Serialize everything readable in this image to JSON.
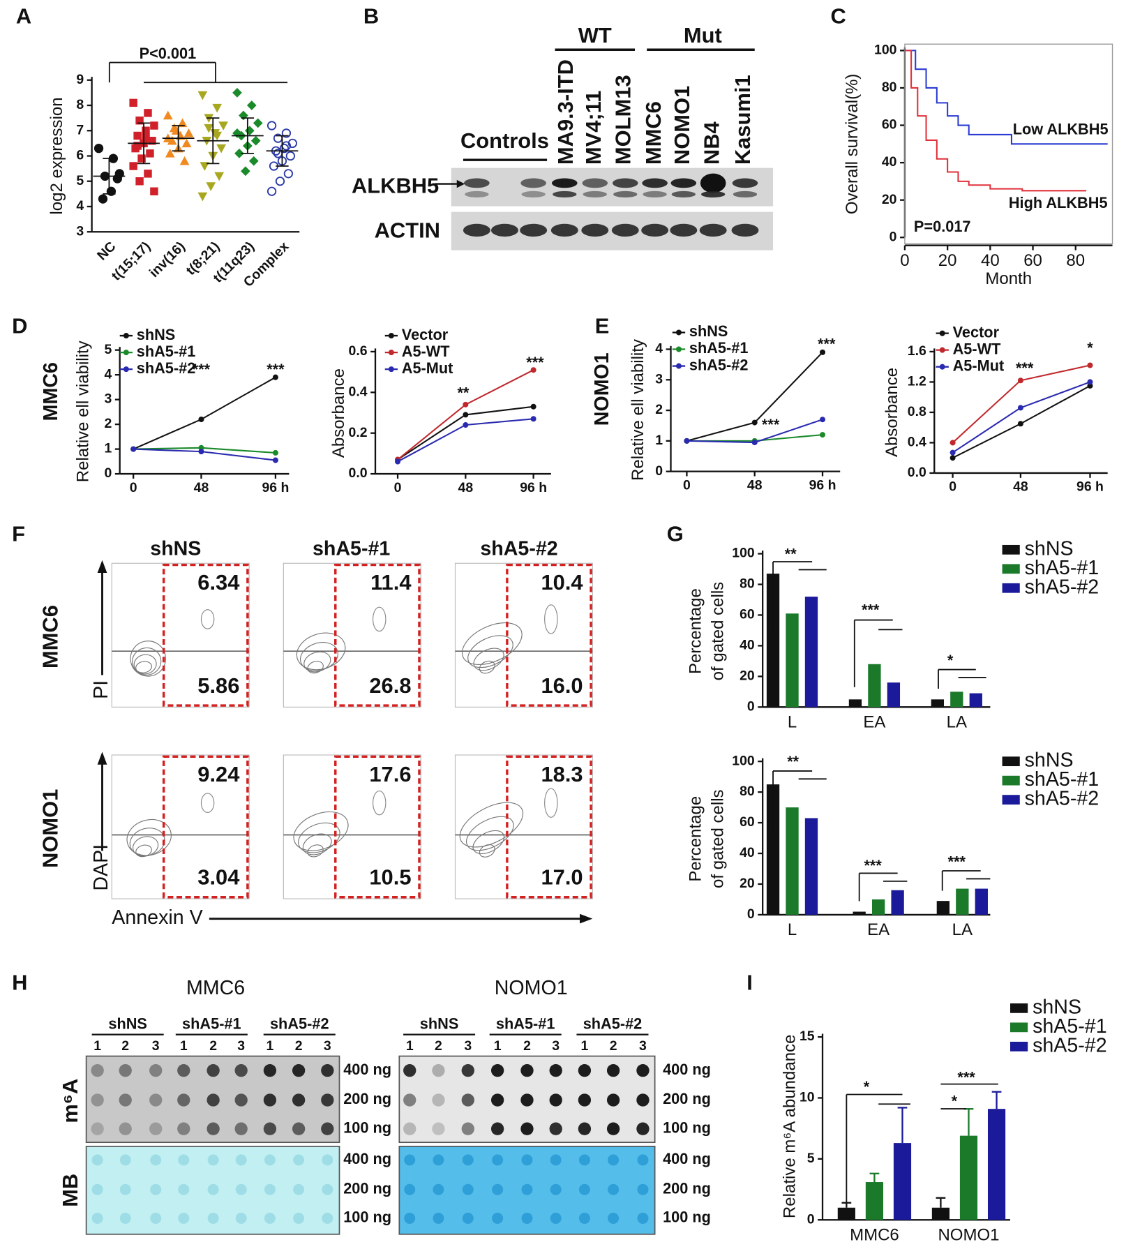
{
  "chart_data": [
    {
      "type": "scatter",
      "categories": [
        "NC",
        "t(15;17)",
        "inv(16)",
        "t(8;21)",
        "t(11q23)",
        "Complex"
      ],
      "points": [
        [
          6.3,
          5.9,
          5.2,
          5.3,
          4.6,
          4.3,
          5.1
        ],
        [
          8.1,
          7.7,
          7.4,
          7.2,
          7.0,
          6.8,
          6.6,
          6.5,
          6.3,
          6.1,
          5.9,
          5.6,
          5.3,
          5.0,
          4.6,
          6.7,
          6.4
        ],
        [
          7.6,
          7.3,
          7.1,
          6.9,
          6.8,
          6.6,
          6.5,
          6.3,
          6.1,
          5.8,
          7.0,
          6.7
        ],
        [
          8.4,
          7.9,
          7.5,
          7.2,
          6.9,
          6.6,
          6.3,
          6.0,
          5.6,
          5.2,
          4.8,
          4.4,
          6.8,
          7.1
        ],
        [
          8.5,
          8.0,
          7.6,
          7.3,
          7.0,
          6.8,
          6.6,
          6.4,
          6.1,
          5.8,
          5.4,
          6.9
        ],
        [
          7.2,
          6.9,
          6.7,
          6.5,
          6.3,
          6.2,
          6.0,
          5.8,
          5.6,
          5.3,
          5.0,
          4.6,
          6.4,
          6.1
        ]
      ],
      "mean": [
        5.2,
        6.5,
        6.7,
        6.6,
        6.8,
        6.2
      ],
      "sd": [
        0.7,
        0.8,
        0.5,
        0.9,
        0.7,
        0.6
      ],
      "colors": [
        "#111111",
        "#d0202a",
        "#f08a20",
        "#a8a820",
        "#1a8a2a",
        "#2a3aa8"
      ],
      "ylim": [
        3,
        9
      ],
      "yticks": [
        3,
        4,
        5,
        6,
        7,
        8,
        9
      ],
      "y_label": "log2 expression",
      "annotations": [
        "P<0.001"
      ]
    },
    {
      "type": "line",
      "step": true,
      "series": [
        {
          "name": "Low ALKBH5",
          "color": "#2a3bd1",
          "x": [
            0,
            5,
            10,
            15,
            20,
            25,
            30,
            35,
            50,
            95
          ],
          "values": [
            100,
            90,
            80,
            72,
            65,
            60,
            55,
            55,
            50,
            50
          ]
        },
        {
          "name": "High ALKBH5",
          "color": "#e0303a",
          "x": [
            0,
            3,
            6,
            10,
            15,
            20,
            25,
            30,
            40,
            55,
            85
          ],
          "values": [
            100,
            80,
            65,
            52,
            42,
            35,
            30,
            28,
            26,
            25,
            25
          ]
        }
      ],
      "xlim": [
        0,
        95
      ],
      "xticks": [
        0,
        20,
        40,
        60,
        80
      ],
      "ylim": [
        0,
        100
      ],
      "yticks": [
        0,
        20,
        40,
        60,
        80,
        100
      ],
      "x_label": "Month",
      "y_label": "Overall survival(%)",
      "annotations": [
        "P=0.017"
      ]
    },
    {
      "type": "line",
      "title": "MMC6",
      "categories": [
        "0",
        "48",
        "96 h"
      ],
      "series": [
        {
          "name": "shNS",
          "color": "#111111",
          "values": [
            1,
            2.2,
            3.9
          ]
        },
        {
          "name": "shA5-#1",
          "color": "#1a8a2a",
          "values": [
            1,
            1.05,
            0.85
          ]
        },
        {
          "name": "shA5-#2",
          "color": "#2a2ab0",
          "values": [
            1,
            0.9,
            0.55
          ]
        }
      ],
      "ylim": [
        0,
        5
      ],
      "yticks": [
        0,
        1,
        2,
        3,
        4,
        5
      ],
      "y_label": "Relative ell viability",
      "annotations": [
        "***",
        "***"
      ]
    },
    {
      "type": "line",
      "categories": [
        "0",
        "48",
        "96 h"
      ],
      "series": [
        {
          "name": "Vector",
          "color": "#111111",
          "values": [
            0.07,
            0.29,
            0.33
          ]
        },
        {
          "name": "A5-WT",
          "color": "#c0282c",
          "values": [
            0.07,
            0.34,
            0.51
          ]
        },
        {
          "name": "A5-Mut",
          "color": "#2a2ab0",
          "values": [
            0.06,
            0.24,
            0.27
          ]
        }
      ],
      "ylim": [
        0,
        0.6
      ],
      "yticks": [
        {
          "value": 0,
          "label": "0.0"
        },
        0.2,
        0.4,
        0.6
      ],
      "y_label": "Absorbance",
      "annotations": [
        "**",
        "***"
      ]
    },
    {
      "type": "line",
      "title": "NOMO1",
      "categories": [
        "0",
        "48",
        "96 h"
      ],
      "series": [
        {
          "name": "shNS",
          "color": "#111111",
          "values": [
            1,
            1.6,
            3.9
          ]
        },
        {
          "name": "shA5-#1",
          "color": "#1a8a2a",
          "values": [
            1,
            1.0,
            1.2
          ]
        },
        {
          "name": "shA5-#2",
          "color": "#2a2ab0",
          "values": [
            1,
            0.95,
            1.7
          ]
        }
      ],
      "ylim": [
        0,
        4
      ],
      "yticks": [
        0,
        1,
        2,
        3,
        4
      ],
      "y_label": "Relative ell viability",
      "annotations": [
        "***",
        "***"
      ]
    },
    {
      "type": "line",
      "categories": [
        "0",
        "48",
        "96 h"
      ],
      "series": [
        {
          "name": "Vector",
          "color": "#111111",
          "values": [
            0.2,
            0.65,
            1.15
          ]
        },
        {
          "name": "A5-WT",
          "color": "#c0282c",
          "values": [
            0.4,
            1.22,
            1.42
          ]
        },
        {
          "name": "A5-Mut",
          "color": "#2a2ab0",
          "values": [
            0.27,
            0.86,
            1.2
          ]
        }
      ],
      "ylim": [
        0,
        1.6
      ],
      "yticks": [
        {
          "value": 0,
          "label": "0.0"
        },
        0.4,
        0.8,
        1.2,
        1.6
      ],
      "y_label": "Absorbance",
      "annotations": [
        "***",
        "*"
      ]
    },
    {
      "type": "bar",
      "categories": [
        "L",
        "EA",
        "LA"
      ],
      "series": [
        {
          "name": "shNS",
          "color": "#111111",
          "values": [
            87,
            5,
            5
          ]
        },
        {
          "name": "shA5-#1",
          "color": "#1a7a2a",
          "values": [
            61,
            28,
            10
          ]
        },
        {
          "name": "shA5-#2",
          "color": "#1a1a9a",
          "values": [
            72,
            16,
            9
          ]
        }
      ],
      "ylim": [
        0,
        100
      ],
      "yticks": [
        0,
        20,
        40,
        60,
        80,
        100
      ],
      "y_label": [
        "Percentage",
        "of gated cells"
      ],
      "annotations": [
        "**",
        "***",
        "*"
      ]
    },
    {
      "type": "bar",
      "categories": [
        "L",
        "EA",
        "LA"
      ],
      "series": [
        {
          "name": "shNS",
          "color": "#111111",
          "values": [
            85,
            2,
            9
          ]
        },
        {
          "name": "shA5-#1",
          "color": "#1a7a2a",
          "values": [
            70,
            10,
            17
          ]
        },
        {
          "name": "shA5-#2",
          "color": "#1a1a9a",
          "values": [
            63,
            16,
            17
          ]
        }
      ],
      "ylim": [
        0,
        100
      ],
      "yticks": [
        0,
        20,
        40,
        60,
        80,
        100
      ],
      "y_label": [
        "Percentage",
        "of gated cells"
      ],
      "annotations": [
        "**",
        "***",
        "***"
      ]
    },
    {
      "type": "bar",
      "categories": [
        "MMC6",
        "NOMO1"
      ],
      "series": [
        {
          "name": "shNS",
          "color": "#111111",
          "values": [
            1,
            1
          ],
          "errors": [
            0.4,
            0.8
          ]
        },
        {
          "name": "shA5-#1",
          "color": "#1a7a2a",
          "values": [
            3.1,
            6.9
          ],
          "errors": [
            0.7,
            2.2
          ]
        },
        {
          "name": "shA5-#2",
          "color": "#1a1a9a",
          "values": [
            6.3,
            9.1
          ],
          "errors": [
            2.9,
            1.4
          ]
        }
      ],
      "ylim": [
        0,
        15
      ],
      "yticks": [
        0,
        5,
        10,
        15
      ],
      "y_label": "Relative m⁶A abundance",
      "annotations": [
        "*",
        "*",
        "***"
      ]
    }
  ],
  "figure": {
    "panel_labels": [
      "A",
      "B",
      "C",
      "D",
      "E",
      "F",
      "G",
      "H",
      "I"
    ],
    "blot": {
      "groups": [
        "WT",
        "Mut"
      ],
      "controls": "Controls",
      "cell_lines": [
        "MA9.3-ITD",
        "MV4;11",
        "MOLM13",
        "MMC6",
        "NOMO1",
        "NB4",
        "Kasumi1"
      ],
      "proteins": [
        "ALKBH5",
        "ACTIN"
      ]
    },
    "flow": {
      "conditions": [
        "shNS",
        "shA5-#1",
        "shA5-#2"
      ],
      "cell_lines": [
        "MMC6",
        "NOMO1"
      ],
      "y_labels": [
        "PI",
        "DAPI"
      ],
      "x_label": "Annexin V",
      "quadrants": [
        [
          [
            "6.34",
            "5.86"
          ],
          [
            "11.4",
            "26.8"
          ],
          [
            "10.4",
            "16.0"
          ]
        ],
        [
          [
            "9.24",
            "3.04"
          ],
          [
            "17.6",
            "10.5"
          ],
          [
            "18.3",
            "17.0"
          ]
        ]
      ]
    },
    "dot_blot": {
      "cell_lines": [
        "MMC6",
        "NOMO1"
      ],
      "groups": [
        "shNS",
        "shA5-#1",
        "shA5-#2"
      ],
      "replicates": [
        "1",
        "2",
        "3"
      ],
      "amounts": [
        "400 ng",
        "200 ng",
        "100 ng"
      ],
      "rows": [
        "m⁶A",
        "MB"
      ]
    }
  }
}
